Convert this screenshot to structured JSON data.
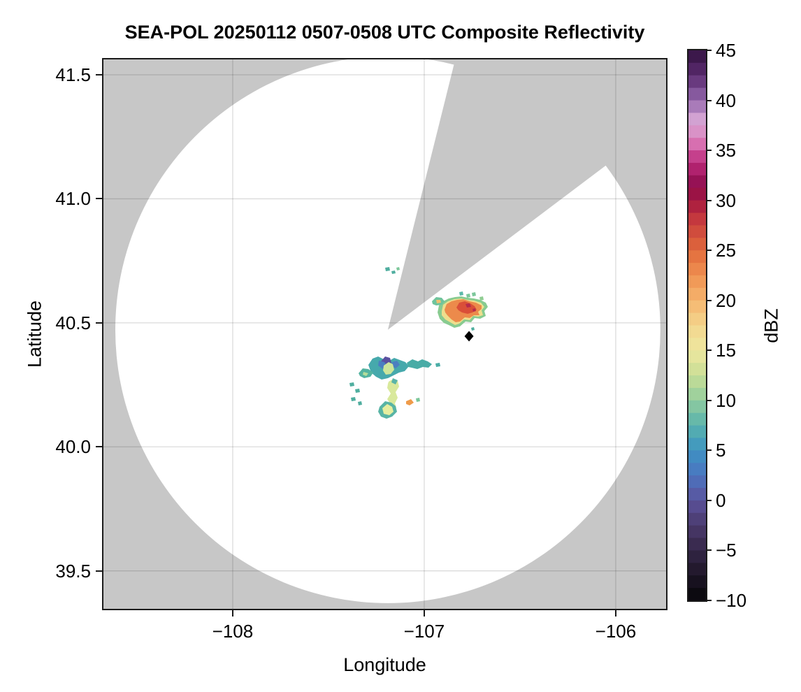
{
  "title": "SEA-POL 20250112 0507-0508 UTC Composite Reflectivity",
  "axes": {
    "xlabel": "Longitude",
    "ylabel": "Latitude",
    "xlim": [
      -108.675,
      -105.737
    ],
    "ylim": [
      39.347,
      41.562
    ],
    "xticks": [
      -108,
      -107,
      -106
    ],
    "xtick_labels": [
      "−108",
      "−107",
      "−106"
    ],
    "yticks": [
      41.5,
      41.0,
      40.5,
      40.0,
      39.5
    ],
    "ytick_labels": [
      "41.5",
      "41.0",
      "40.5",
      "40.0",
      "39.5"
    ],
    "grid": true,
    "grid_color": "rgba(0,0,0,0.14)"
  },
  "colorbar": {
    "label": "dBZ",
    "min": -10,
    "max": 45,
    "band_step": 1.25,
    "ticks": [
      45,
      40,
      35,
      30,
      25,
      20,
      15,
      10,
      5,
      0,
      -5,
      -10
    ],
    "tick_labels": [
      "45",
      "40",
      "35",
      "30",
      "25",
      "20",
      "15",
      "10",
      "5",
      "0",
      "−5",
      "−10"
    ],
    "stops": [
      [
        45,
        "#31123f"
      ],
      [
        42.5,
        "#5b2b70"
      ],
      [
        40,
        "#9468ad"
      ],
      [
        38,
        "#d6a6d4"
      ],
      [
        36,
        "#dc82bd"
      ],
      [
        35,
        "#cf4f9b"
      ],
      [
        33,
        "#ae1f6b"
      ],
      [
        31.5,
        "#8e0d4e"
      ],
      [
        30,
        "#a4173f"
      ],
      [
        28,
        "#c63a3e"
      ],
      [
        25,
        "#e16a3c"
      ],
      [
        22.5,
        "#ef9151"
      ],
      [
        20,
        "#f5b56e"
      ],
      [
        17.5,
        "#f3d58d"
      ],
      [
        15,
        "#eee79f"
      ],
      [
        12.5,
        "#c9de96"
      ],
      [
        10,
        "#92cc9e"
      ],
      [
        7.5,
        "#59b3ad"
      ],
      [
        5,
        "#3d93c2"
      ],
      [
        2.5,
        "#4b74c0"
      ],
      [
        0,
        "#5b529c"
      ],
      [
        -2.5,
        "#4a3a6c"
      ],
      [
        -5,
        "#342647"
      ],
      [
        -7.5,
        "#1d1526"
      ],
      [
        -10,
        "#060609"
      ]
    ]
  },
  "radar": {
    "center_lon": -107.19,
    "center_lat": 40.472,
    "range_deg_lon": 1.423,
    "range_deg_lat": 1.102,
    "blocked_sector_azimuths_deg": [
      14,
      53
    ],
    "nodata_color": "#c7c7c7",
    "coverage_color": "#ffffff"
  },
  "marker": {
    "shape": "diamond",
    "color": "#000000",
    "lon": -106.766,
    "lat": 40.446
  },
  "chart_data": {
    "type": "heatmap",
    "title": "SEA-POL 20250112 0507-0508 UTC Composite Reflectivity",
    "xlabel": "Longitude",
    "ylabel": "Latitude",
    "xlim": [
      -108.675,
      -105.737
    ],
    "ylim": [
      39.347,
      41.562
    ],
    "colorbar_label": "dBZ",
    "clim": [
      -10,
      45
    ],
    "grid": true,
    "features": [
      {
        "name": "storm-cell-northeast",
        "lon_range": [
          -106.83,
          -106.53
        ],
        "lat_range": [
          40.45,
          40.62
        ],
        "max_dbz": 33,
        "description": "compact cell with orange-red 25-33 dBZ core, yellow-green 10-20 dBZ fringe, scattered 5-12 dBZ specks to its north"
      },
      {
        "name": "storm-cluster-southwest",
        "lon_range": [
          -107.4,
          -106.8
        ],
        "lat_range": [
          40.05,
          40.4
        ],
        "max_dbz": 25,
        "description": "scattered weak echoes 0-18 dBZ; teal/blue 0-8 dBZ patches, small purple ~0 dBZ core, yellow-green 13-17 dBZ stalks, one tiny ~25 dBZ orange speck"
      },
      {
        "name": "radar-site-marker",
        "lon": -106.766,
        "lat": 40.446,
        "symbol": "black diamond"
      },
      {
        "name": "radar-coverage",
        "center": [
          -107.19,
          40.472
        ],
        "radius_deg_lon": 1.423,
        "radius_deg_lat": 1.102,
        "blocked_sector_azimuths_deg": [
          14,
          53
        ],
        "description": "white disk of radar coverage on gray no-data background; gray blocked sector between azimuths ~14-53 degrees from north"
      }
    ]
  },
  "echo_blobs": [
    {
      "id": "ne-fringe-green",
      "color": "#88cb90",
      "pts": [
        [
          478,
          362
        ],
        [
          480,
          352
        ],
        [
          486,
          346
        ],
        [
          494,
          342
        ],
        [
          503,
          340
        ],
        [
          512,
          339
        ],
        [
          521,
          341
        ],
        [
          530,
          342
        ],
        [
          539,
          344
        ],
        [
          547,
          348
        ],
        [
          550,
          354
        ],
        [
          545,
          360
        ],
        [
          547,
          367
        ],
        [
          539,
          371
        ],
        [
          531,
          370
        ],
        [
          526,
          376
        ],
        [
          518,
          375
        ],
        [
          510,
          382
        ],
        [
          502,
          384
        ],
        [
          494,
          380
        ],
        [
          487,
          377
        ],
        [
          481,
          371
        ]
      ]
    },
    {
      "id": "ne-yellow",
      "color": "#eede8d",
      "pts": [
        [
          484,
          360
        ],
        [
          486,
          351
        ],
        [
          493,
          346
        ],
        [
          502,
          343
        ],
        [
          512,
          342
        ],
        [
          521,
          344
        ],
        [
          530,
          345
        ],
        [
          540,
          348
        ],
        [
          545,
          354
        ],
        [
          541,
          359
        ],
        [
          543,
          366
        ],
        [
          536,
          368
        ],
        [
          529,
          367
        ],
        [
          524,
          373
        ],
        [
          516,
          372
        ],
        [
          509,
          378
        ],
        [
          503,
          380
        ],
        [
          496,
          376
        ],
        [
          489,
          372
        ],
        [
          484,
          366
        ]
      ]
    },
    {
      "id": "ne-orange",
      "color": "#ec8a4b",
      "pts": [
        [
          488,
          358
        ],
        [
          491,
          350
        ],
        [
          498,
          346
        ],
        [
          506,
          344
        ],
        [
          515,
          343
        ],
        [
          524,
          346
        ],
        [
          533,
          348
        ],
        [
          541,
          352
        ],
        [
          541,
          357
        ],
        [
          536,
          361
        ],
        [
          538,
          366
        ],
        [
          530,
          366
        ],
        [
          524,
          370
        ],
        [
          517,
          369
        ],
        [
          510,
          375
        ],
        [
          504,
          376
        ],
        [
          498,
          372
        ],
        [
          492,
          366
        ],
        [
          489,
          362
        ]
      ]
    },
    {
      "id": "ne-red",
      "color": "#da4f38",
      "pts": [
        [
          505,
          355
        ],
        [
          509,
          348
        ],
        [
          517,
          346
        ],
        [
          525,
          349
        ],
        [
          531,
          353
        ],
        [
          534,
          358
        ],
        [
          528,
          362
        ],
        [
          521,
          364
        ],
        [
          513,
          362
        ],
        [
          508,
          359
        ]
      ]
    },
    {
      "id": "ne-crimson-1",
      "color": "#b52a4c",
      "pts": [
        [
          518,
          350
        ],
        [
          524,
          349
        ],
        [
          526,
          354
        ],
        [
          520,
          355
        ]
      ]
    },
    {
      "id": "ne-crimson-2",
      "color": "#b52a4c",
      "pts": [
        [
          528,
          357
        ],
        [
          532,
          356
        ],
        [
          533,
          360
        ],
        [
          529,
          361
        ]
      ]
    },
    {
      "id": "ne-west-blob",
      "color": "#6fc49c",
      "pts": [
        [
          470,
          346
        ],
        [
          476,
          340
        ],
        [
          484,
          341
        ],
        [
          488,
          346
        ],
        [
          484,
          351
        ],
        [
          476,
          352
        ],
        [
          471,
          350
        ]
      ]
    },
    {
      "id": "ne-west-blob-core",
      "color": "#f0c070",
      "pts": [
        [
          476,
          344
        ],
        [
          482,
          344
        ],
        [
          483,
          348
        ],
        [
          477,
          349
        ]
      ]
    },
    {
      "id": "ne-speck-1",
      "color": "#5bb8a8",
      "pts": [
        [
          509,
          333
        ],
        [
          514,
          332
        ],
        [
          515,
          337
        ],
        [
          510,
          338
        ]
      ]
    },
    {
      "id": "ne-speck-2",
      "color": "#7cc79a",
      "pts": [
        [
          519,
          336
        ],
        [
          524,
          335
        ],
        [
          525,
          340
        ],
        [
          520,
          341
        ]
      ]
    },
    {
      "id": "ne-speck-3",
      "color": "#7cc79a",
      "pts": [
        [
          527,
          334
        ],
        [
          532,
          333
        ],
        [
          533,
          338
        ],
        [
          528,
          339
        ]
      ]
    },
    {
      "id": "ne-speck-4",
      "color": "#8fcd92",
      "pts": [
        [
          538,
          340
        ],
        [
          543,
          339
        ],
        [
          544,
          344
        ],
        [
          539,
          345
        ]
      ]
    },
    {
      "id": "ne-diamond-speck",
      "color": "#4fae9f",
      "pts": [
        [
          526,
          384
        ],
        [
          530,
          383
        ],
        [
          531,
          387
        ],
        [
          527,
          388
        ]
      ]
    },
    {
      "id": "sw-main-teal",
      "color": "#46a9ac",
      "pts": [
        [
          379,
          437
        ],
        [
          385,
          428
        ],
        [
          393,
          425
        ],
        [
          401,
          429
        ],
        [
          409,
          431
        ],
        [
          416,
          427
        ],
        [
          424,
          430
        ],
        [
          432,
          433
        ],
        [
          437,
          439
        ],
        [
          431,
          446
        ],
        [
          423,
          448
        ],
        [
          415,
          452
        ],
        [
          407,
          456
        ],
        [
          398,
          458
        ],
        [
          390,
          454
        ],
        [
          383,
          448
        ]
      ]
    },
    {
      "id": "sw-purple",
      "color": "#5a50a0",
      "pts": [
        [
          397,
          432
        ],
        [
          403,
          425
        ],
        [
          410,
          427
        ],
        [
          412,
          434
        ],
        [
          407,
          440
        ],
        [
          400,
          438
        ]
      ]
    },
    {
      "id": "sw-blue-1",
      "color": "#4b7fc0",
      "pts": [
        [
          394,
          431
        ],
        [
          402,
          433
        ],
        [
          406,
          439
        ],
        [
          400,
          443
        ],
        [
          393,
          438
        ]
      ]
    },
    {
      "id": "sw-blue-2",
      "color": "#4b7fc0",
      "pts": [
        [
          413,
          433
        ],
        [
          420,
          431
        ],
        [
          424,
          437
        ],
        [
          418,
          442
        ],
        [
          412,
          438
        ]
      ]
    },
    {
      "id": "sw-green-core",
      "color": "#cde69b",
      "pts": [
        [
          401,
          438
        ],
        [
          408,
          433
        ],
        [
          414,
          436
        ],
        [
          416,
          444
        ],
        [
          411,
          450
        ],
        [
          404,
          451
        ],
        [
          400,
          445
        ]
      ]
    },
    {
      "id": "sw-east-arm",
      "color": "#49aca6",
      "pts": [
        [
          434,
          434
        ],
        [
          442,
          429
        ],
        [
          450,
          432
        ],
        [
          456,
          429
        ],
        [
          464,
          432
        ],
        [
          470,
          436
        ],
        [
          465,
          441
        ],
        [
          457,
          440
        ],
        [
          449,
          443
        ],
        [
          441,
          441
        ],
        [
          436,
          440
        ]
      ]
    },
    {
      "id": "sw-east-speck",
      "color": "#49aca6",
      "pts": [
        [
          475,
          435
        ],
        [
          481,
          434
        ],
        [
          482,
          439
        ],
        [
          476,
          440
        ]
      ]
    },
    {
      "id": "sw-west-arm",
      "color": "#53b3a1",
      "pts": [
        [
          365,
          449
        ],
        [
          371,
          442
        ],
        [
          379,
          443
        ],
        [
          386,
          448
        ],
        [
          382,
          454
        ],
        [
          373,
          456
        ],
        [
          367,
          453
        ]
      ]
    },
    {
      "id": "sw-west-arm-green",
      "color": "#b5dd9a",
      "pts": [
        [
          372,
          447
        ],
        [
          379,
          449
        ],
        [
          376,
          453
        ],
        [
          371,
          451
        ]
      ]
    },
    {
      "id": "sw-speck-1",
      "color": "#4fae9f",
      "pts": [
        [
          352,
          463
        ],
        [
          358,
          462
        ],
        [
          359,
          467
        ],
        [
          353,
          468
        ]
      ]
    },
    {
      "id": "sw-speck-2",
      "color": "#4fae9f",
      "pts": [
        [
          360,
          472
        ],
        [
          366,
          471
        ],
        [
          367,
          476
        ],
        [
          361,
          477
        ]
      ]
    },
    {
      "id": "sw-speck-3",
      "color": "#4fae9f",
      "pts": [
        [
          354,
          484
        ],
        [
          360,
          483
        ],
        [
          361,
          488
        ],
        [
          355,
          489
        ]
      ]
    },
    {
      "id": "sw-speck-4",
      "color": "#4fae9f",
      "pts": [
        [
          364,
          490
        ],
        [
          369,
          489
        ],
        [
          370,
          494
        ],
        [
          365,
          495
        ]
      ]
    },
    {
      "id": "sw-stalk",
      "color": "#d9e99c",
      "pts": [
        [
          408,
          461
        ],
        [
          415,
          457
        ],
        [
          421,
          460
        ],
        [
          423,
          468
        ],
        [
          418,
          476
        ],
        [
          421,
          484
        ],
        [
          417,
          492
        ],
        [
          419,
          498
        ],
        [
          413,
          503
        ],
        [
          408,
          500
        ],
        [
          410,
          492
        ],
        [
          406,
          486
        ],
        [
          411,
          478
        ],
        [
          406,
          470
        ],
        [
          407,
          464
        ]
      ]
    },
    {
      "id": "sw-stalk-teal",
      "color": "#5ab4a8",
      "pts": [
        [
          414,
          456
        ],
        [
          421,
          459
        ],
        [
          418,
          465
        ],
        [
          412,
          462
        ]
      ]
    },
    {
      "id": "sw-orange-speck",
      "color": "#ef9b4a",
      "pts": [
        [
          433,
          489
        ],
        [
          440,
          486
        ],
        [
          444,
          491
        ],
        [
          438,
          495
        ],
        [
          433,
          493
        ]
      ]
    },
    {
      "id": "sw-se-speck",
      "color": "#7cc79a",
      "pts": [
        [
          447,
          485
        ],
        [
          452,
          484
        ],
        [
          453,
          489
        ],
        [
          448,
          490
        ]
      ]
    },
    {
      "id": "sw-bottom-rim",
      "color": "#58b4a5",
      "pts": [
        [
          395,
          497
        ],
        [
          403,
          489
        ],
        [
          412,
          491
        ],
        [
          418,
          496
        ],
        [
          420,
          504
        ],
        [
          413,
          511
        ],
        [
          405,
          514
        ],
        [
          397,
          511
        ],
        [
          393,
          504
        ]
      ]
    },
    {
      "id": "sw-bottom-core",
      "color": "#e6ee9f",
      "pts": [
        [
          399,
          499
        ],
        [
          406,
          493
        ],
        [
          413,
          497
        ],
        [
          415,
          504
        ],
        [
          409,
          509
        ],
        [
          401,
          507
        ]
      ]
    },
    {
      "id": "apex-speck-1",
      "color": "#4fae9f",
      "pts": [
        [
          403,
          298
        ],
        [
          409,
          297
        ],
        [
          410,
          302
        ],
        [
          404,
          303
        ]
      ]
    },
    {
      "id": "apex-speck-2",
      "color": "#4fae9f",
      "pts": [
        [
          412,
          303
        ],
        [
          417,
          302
        ],
        [
          418,
          306
        ],
        [
          413,
          307
        ]
      ]
    },
    {
      "id": "apex-speck-3",
      "color": "#7cc79a",
      "pts": [
        [
          419,
          298
        ],
        [
          423,
          297
        ],
        [
          424,
          301
        ],
        [
          420,
          302
        ]
      ]
    }
  ]
}
